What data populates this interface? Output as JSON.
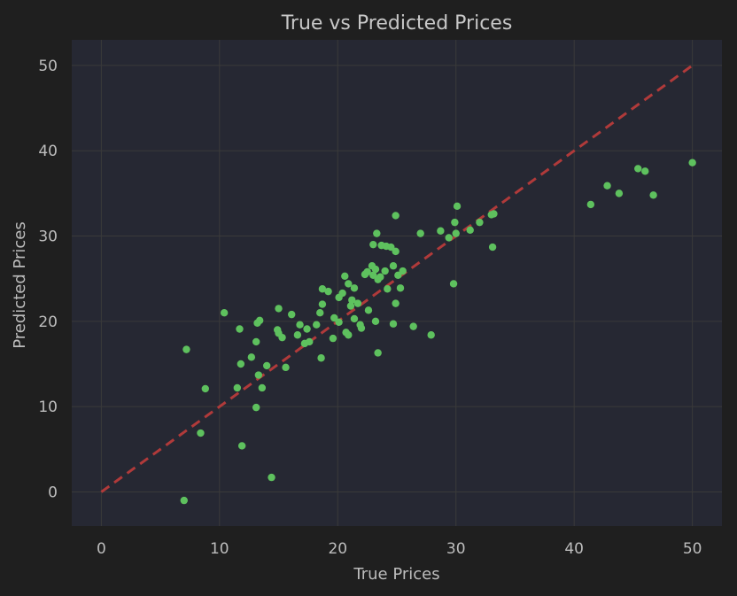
{
  "chart_data": {
    "type": "scatter",
    "title": "True vs Predicted Prices",
    "xlabel": "True Prices",
    "ylabel": "Predicted Prices",
    "xlim": [
      -2.5,
      52.5
    ],
    "ylim": [
      -4,
      53
    ],
    "xticks": [
      0,
      10,
      20,
      30,
      40,
      50
    ],
    "yticks": [
      0,
      10,
      20,
      30,
      40,
      50
    ],
    "grid": true,
    "colors": {
      "page": "#1f1f1f",
      "plot_bg": "#262833",
      "grid": "#3a3a3a",
      "points": "#5ec15e",
      "reference_line": "#b03a3a"
    },
    "reference_line": {
      "style": "dashed",
      "from": [
        0,
        0
      ],
      "to": [
        50,
        50
      ]
    },
    "series": [
      {
        "points": [
          [
            7.0,
            -1.0
          ],
          [
            7.2,
            16.7
          ],
          [
            8.4,
            6.9
          ],
          [
            8.8,
            12.1
          ],
          [
            10.4,
            21.0
          ],
          [
            11.5,
            12.2
          ],
          [
            11.7,
            19.1
          ],
          [
            11.8,
            15.0
          ],
          [
            11.9,
            5.4
          ],
          [
            12.7,
            15.8
          ],
          [
            13.1,
            17.6
          ],
          [
            13.1,
            9.9
          ],
          [
            13.2,
            19.8
          ],
          [
            13.3,
            13.7
          ],
          [
            13.4,
            20.1
          ],
          [
            13.6,
            12.2
          ],
          [
            14.0,
            14.8
          ],
          [
            14.4,
            1.7
          ],
          [
            14.9,
            19.0
          ],
          [
            15.0,
            18.6
          ],
          [
            15.0,
            21.5
          ],
          [
            15.3,
            18.1
          ],
          [
            15.6,
            14.6
          ],
          [
            16.1,
            20.8
          ],
          [
            16.6,
            18.4
          ],
          [
            16.8,
            19.6
          ],
          [
            17.2,
            17.4
          ],
          [
            17.4,
            19.1
          ],
          [
            17.6,
            17.6
          ],
          [
            18.2,
            19.6
          ],
          [
            18.5,
            21.0
          ],
          [
            18.6,
            15.7
          ],
          [
            18.7,
            22.0
          ],
          [
            18.7,
            23.8
          ],
          [
            19.2,
            23.5
          ],
          [
            19.6,
            18.0
          ],
          [
            19.7,
            20.4
          ],
          [
            20.1,
            19.9
          ],
          [
            20.1,
            22.8
          ],
          [
            20.4,
            23.3
          ],
          [
            20.6,
            25.3
          ],
          [
            20.7,
            18.7
          ],
          [
            20.9,
            18.4
          ],
          [
            20.9,
            24.4
          ],
          [
            21.1,
            21.8
          ],
          [
            21.2,
            22.5
          ],
          [
            21.4,
            23.9
          ],
          [
            21.4,
            20.3
          ],
          [
            21.7,
            22.1
          ],
          [
            21.9,
            19.6
          ],
          [
            22.0,
            19.2
          ],
          [
            22.3,
            25.5
          ],
          [
            22.5,
            25.8
          ],
          [
            22.6,
            21.3
          ],
          [
            22.9,
            26.5
          ],
          [
            23.0,
            25.4
          ],
          [
            23.0,
            29.0
          ],
          [
            23.2,
            20.0
          ],
          [
            23.2,
            26.1
          ],
          [
            23.3,
            30.3
          ],
          [
            23.4,
            24.9
          ],
          [
            23.4,
            16.3
          ],
          [
            23.6,
            25.2
          ],
          [
            23.7,
            28.9
          ],
          [
            24.1,
            28.8
          ],
          [
            24.0,
            25.9
          ],
          [
            24.2,
            23.8
          ],
          [
            24.5,
            28.7
          ],
          [
            24.7,
            19.7
          ],
          [
            24.7,
            26.5
          ],
          [
            24.9,
            28.2
          ],
          [
            24.9,
            22.1
          ],
          [
            24.9,
            32.4
          ],
          [
            25.1,
            25.4
          ],
          [
            25.3,
            23.9
          ],
          [
            25.5,
            25.9
          ],
          [
            26.4,
            19.4
          ],
          [
            27.0,
            30.3
          ],
          [
            27.9,
            18.4
          ],
          [
            28.7,
            30.6
          ],
          [
            29.4,
            29.8
          ],
          [
            29.8,
            24.4
          ],
          [
            29.9,
            31.6
          ],
          [
            30.0,
            30.3
          ],
          [
            30.1,
            33.5
          ],
          [
            31.2,
            30.7
          ],
          [
            32.0,
            31.6
          ],
          [
            33.0,
            32.5
          ],
          [
            33.1,
            28.7
          ],
          [
            33.2,
            32.6
          ],
          [
            41.4,
            33.7
          ],
          [
            42.8,
            35.9
          ],
          [
            43.8,
            35.0
          ],
          [
            45.4,
            37.9
          ],
          [
            46.0,
            37.6
          ],
          [
            46.7,
            34.8
          ],
          [
            50.0,
            38.6
          ]
        ]
      }
    ]
  }
}
